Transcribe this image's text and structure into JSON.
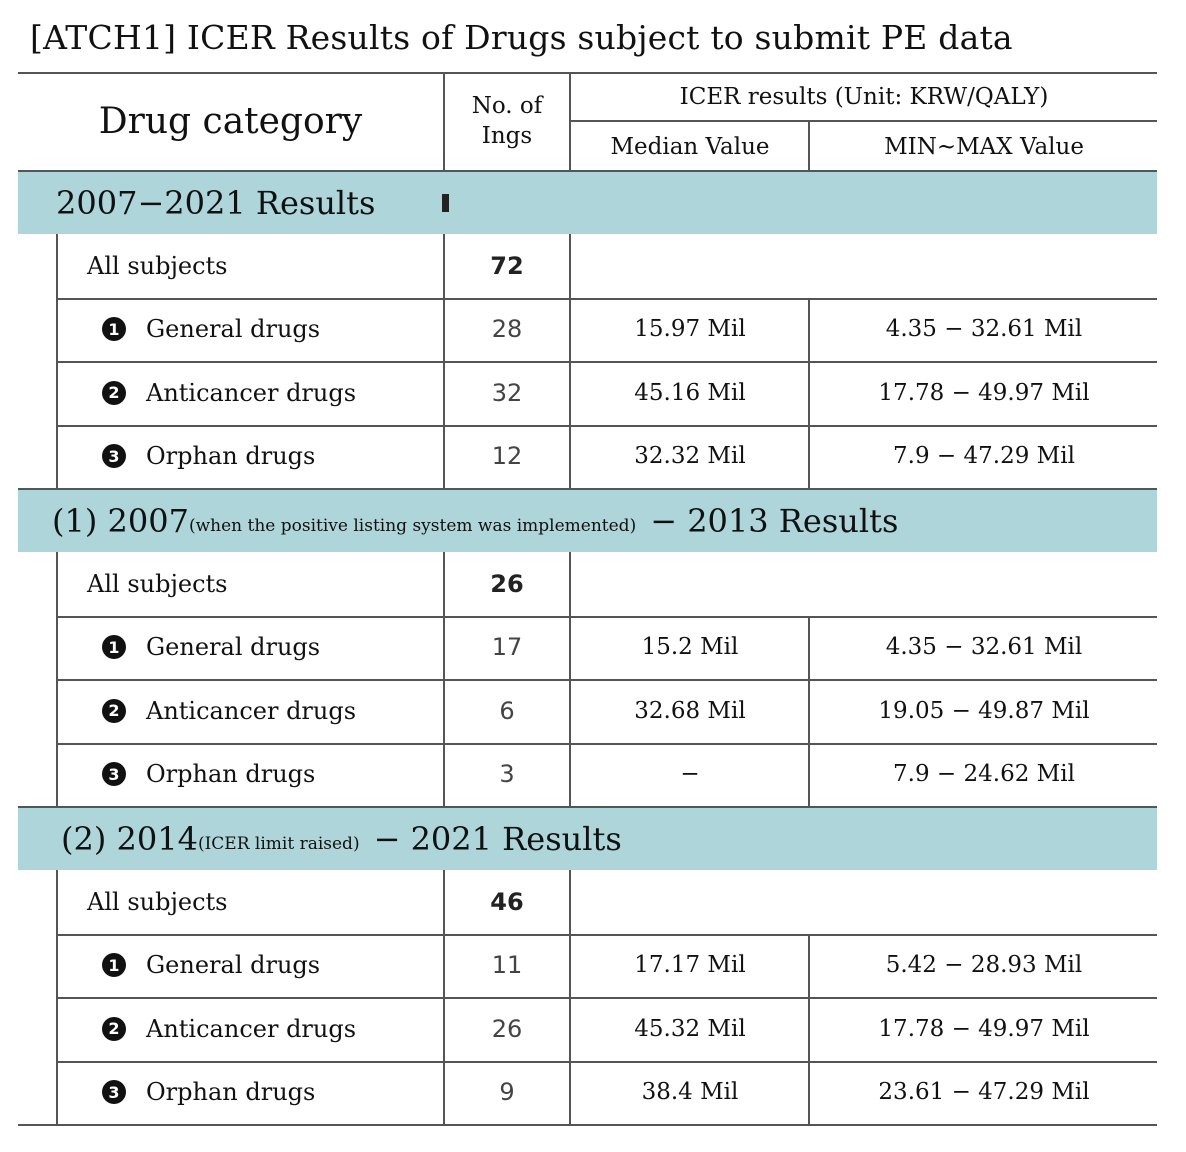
{
  "title": "[ATCH1] ICER Results of Drugs subject to submit PE data",
  "header": {
    "drug_category": "Drug category",
    "no_of_ings_line1": "No. of",
    "no_of_ings_line2": "Ings",
    "icer_results": "ICER results (Unit: KRW/QALY)",
    "median_value": "Median Value",
    "min_max_value": "MIN~MAX Value"
  },
  "sections": [
    {
      "title_main": "2007−2021 Results",
      "title_note": "",
      "title_tail": "",
      "rows": [
        {
          "bullet": "",
          "label": "All subjects",
          "count": "72",
          "median": "",
          "range": ""
        },
        {
          "bullet": "1",
          "label": "General drugs",
          "count": "28",
          "median": "15.97 Mil",
          "range": "4.35 − 32.61 Mil"
        },
        {
          "bullet": "2",
          "label": "Anticancer drugs",
          "count": "32",
          "median": "45.16 Mil",
          "range": "17.78 − 49.97 Mil"
        },
        {
          "bullet": "3",
          "label": "Orphan drugs",
          "count": "12",
          "median": "32.32 Mil",
          "range": "7.9 − 47.29 Mil"
        }
      ]
    },
    {
      "title_main": "(1) 2007",
      "title_note": "(when the positive listing system was implemented)",
      "title_tail": "− 2013 Results",
      "rows": [
        {
          "bullet": "",
          "label": "All subjects",
          "count": "26",
          "median": "",
          "range": ""
        },
        {
          "bullet": "1",
          "label": "General drugs",
          "count": "17",
          "median": "15.2 Mil",
          "range": "4.35 − 32.61 Mil"
        },
        {
          "bullet": "2",
          "label": "Anticancer drugs",
          "count": "6",
          "median": "32.68 Mil",
          "range": "19.05 − 49.87 Mil"
        },
        {
          "bullet": "3",
          "label": "Orphan drugs",
          "count": "3",
          "median": "−",
          "range": "7.9 − 24.62 Mil"
        }
      ]
    },
    {
      "title_main": "(2) 2014",
      "title_note": "(ICER limit raised)",
      "title_tail": "− 2021 Results",
      "rows": [
        {
          "bullet": "",
          "label": "All subjects",
          "count": "46",
          "median": "",
          "range": ""
        },
        {
          "bullet": "1",
          "label": "General drugs",
          "count": "11",
          "median": "17.17 Mil",
          "range": "5.42 − 28.93 Mil"
        },
        {
          "bullet": "2",
          "label": "Anticancer drugs",
          "count": "26",
          "median": "45.32 Mil",
          "range": "17.78 − 49.97 Mil"
        },
        {
          "bullet": "3",
          "label": "Orphan drugs",
          "count": "9",
          "median": "38.4 Mil",
          "range": "23.61 − 47.29 Mil"
        }
      ]
    }
  ]
}
